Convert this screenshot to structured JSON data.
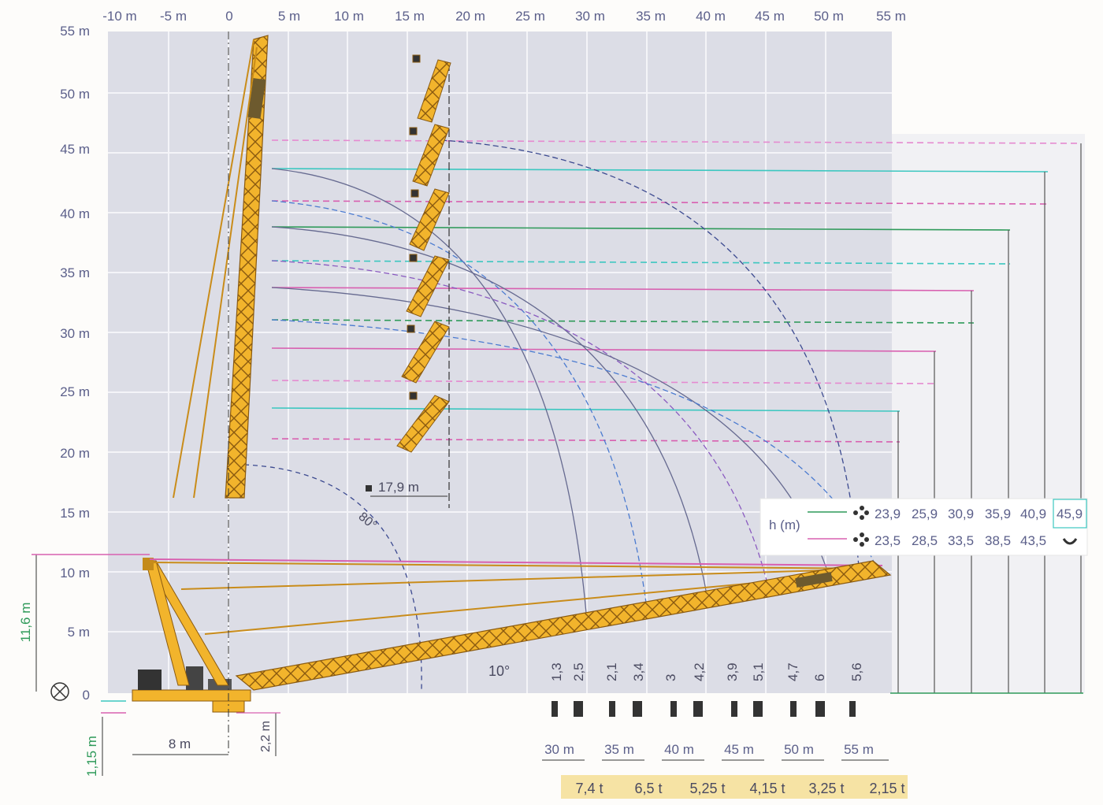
{
  "x_axis": {
    "ticks": [
      "-10 m",
      "-5 m",
      "0",
      "5 m",
      "10 m",
      "15 m",
      "20 m",
      "25 m",
      "30 m",
      "35 m",
      "40 m",
      "45 m",
      "50 m",
      "55 m"
    ]
  },
  "y_axis": {
    "ticks": [
      "0",
      "5 m",
      "10 m",
      "15 m",
      "20 m",
      "25 m",
      "30 m",
      "35 m",
      "40 m",
      "45 m",
      "50 m",
      "55 m"
    ]
  },
  "labels": {
    "jib_offset": "17,9 m",
    "boom_height": "11,6 m",
    "base_depth": "1,15 m",
    "track_width": "8 m",
    "front_offset": "2,2 m",
    "boom_angle": "10°",
    "luff_angle": "80°",
    "h_label": "h (m)"
  },
  "legend": {
    "top_row": [
      "23,9",
      "25,9",
      "30,9",
      "35,9",
      "40,9",
      "45,9"
    ],
    "bottom_row": [
      "23,5",
      "28,5",
      "33,5",
      "38,5",
      "43,5"
    ]
  },
  "pairs": [
    {
      "a": "1,3",
      "b": "2,5"
    },
    {
      "a": "2,1",
      "b": "3,4"
    },
    {
      "a": "3",
      "b": "4,2"
    },
    {
      "a": "3,9",
      "b": "5,1"
    },
    {
      "a": "4,7",
      "b": "6"
    },
    {
      "a": "5,6",
      "b": ""
    }
  ],
  "radii": [
    "30 m",
    "35 m",
    "40 m",
    "45 m",
    "50 m",
    "55 m"
  ],
  "loads": [
    "7,4 t",
    "6,5 t",
    "5,25 t",
    "4,15 t",
    "3,25 t",
    "2,15 t"
  ],
  "colors": {
    "boom": "#f2b42c",
    "grid_bg": "#dcdde6",
    "axis_text": "#5b5f8a",
    "green": "#2f9a5a",
    "cyan": "#3cc7c0",
    "magenta": "#d860b0",
    "load_bg": "#f6e3a4"
  }
}
